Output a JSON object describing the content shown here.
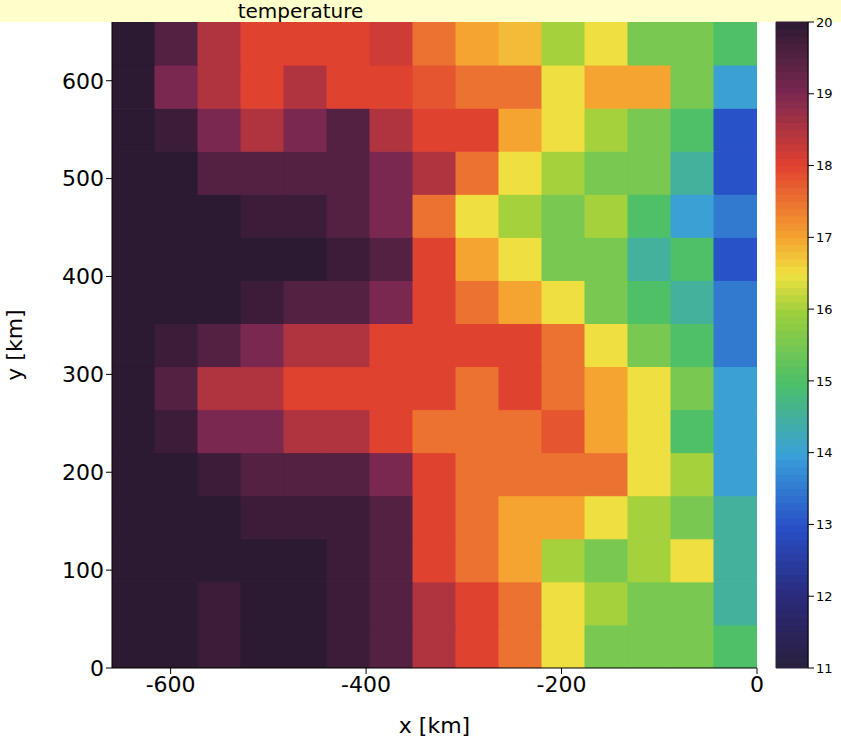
{
  "chart_data": {
    "type": "heatmap",
    "title": "temperature",
    "x_label": "x [km]",
    "y_label": "y [km]",
    "xlim": [
      -660,
      0
    ],
    "ylim": [
      0,
      660
    ],
    "xticks": [
      -600,
      -400,
      -200,
      0
    ],
    "yticks": [
      0,
      100,
      200,
      300,
      400,
      500,
      600
    ],
    "x": [
      -638,
      -594,
      -550,
      -506,
      -462,
      -418,
      -374,
      -330,
      -286,
      -242,
      -198,
      -154,
      -110,
      -66,
      -22
    ],
    "y": [
      22,
      66,
      110,
      154,
      198,
      242,
      286,
      330,
      374,
      418,
      462,
      506,
      550,
      594,
      638
    ],
    "z": [
      [
        20,
        20,
        19.8,
        20,
        20,
        19.8,
        19.5,
        18.5,
        18,
        17.5,
        16.5,
        15.5,
        15.5,
        15.5,
        15
      ],
      [
        20,
        20,
        19.8,
        20,
        20,
        19.8,
        19.5,
        18.5,
        18,
        17.5,
        16.5,
        16,
        15.5,
        15.5,
        14.5
      ],
      [
        20,
        20,
        20,
        20,
        20,
        19.8,
        19.5,
        18,
        17.5,
        17,
        16,
        15.5,
        16,
        16.5,
        14.5
      ],
      [
        20,
        20,
        20,
        19.8,
        19.8,
        19.8,
        19.5,
        18,
        17.5,
        17,
        17,
        16.5,
        16,
        15.5,
        14.5
      ],
      [
        20,
        20,
        19.8,
        19.5,
        19.5,
        19.5,
        19,
        18,
        17.5,
        17.5,
        17.5,
        17.5,
        16.5,
        16,
        14
      ],
      [
        20,
        19.8,
        19,
        19,
        18.5,
        18.5,
        18,
        17.5,
        17.5,
        17.5,
        17.8,
        17,
        16.5,
        15,
        14
      ],
      [
        20,
        19.5,
        18.5,
        18.5,
        18,
        18,
        18,
        18,
        17.5,
        18,
        17.5,
        17,
        16.5,
        15.5,
        14
      ],
      [
        20,
        19.8,
        19.5,
        19,
        18.5,
        18.5,
        18,
        18,
        18,
        18,
        17.5,
        16.5,
        15.5,
        15,
        13.5
      ],
      [
        20,
        20,
        20,
        19.8,
        19.5,
        19.5,
        19,
        18,
        17.5,
        17,
        16.5,
        15.5,
        15,
        14.5,
        13.5
      ],
      [
        20,
        20,
        20,
        20,
        20,
        19.8,
        19.5,
        18,
        17,
        16.5,
        15.5,
        15.5,
        14.5,
        15,
        13
      ],
      [
        20,
        20,
        20,
        19.8,
        19.8,
        19.5,
        19,
        17.5,
        16.5,
        16,
        15.5,
        16,
        15,
        14,
        13.5
      ],
      [
        20,
        20,
        19.5,
        19.5,
        19.5,
        19.5,
        19,
        18.5,
        17.5,
        16.5,
        16,
        15.5,
        15.5,
        14.5,
        13
      ],
      [
        20,
        19.8,
        19,
        18.5,
        19,
        19.5,
        18.5,
        18,
        18,
        17,
        16.5,
        16,
        15.5,
        15,
        13
      ],
      [
        20,
        19,
        18.5,
        18,
        18.5,
        18,
        18,
        17.8,
        17.5,
        17.5,
        16.5,
        17,
        17,
        15.5,
        14
      ],
      [
        20,
        19.5,
        18.5,
        18,
        18,
        18,
        18.2,
        17.5,
        17,
        16.8,
        16,
        16.5,
        15.5,
        15.5,
        15
      ]
    ],
    "colorbar": {
      "range": [
        11,
        20
      ],
      "ticks": [
        11,
        12,
        13,
        14,
        15,
        16,
        17,
        18,
        19,
        20
      ]
    }
  }
}
